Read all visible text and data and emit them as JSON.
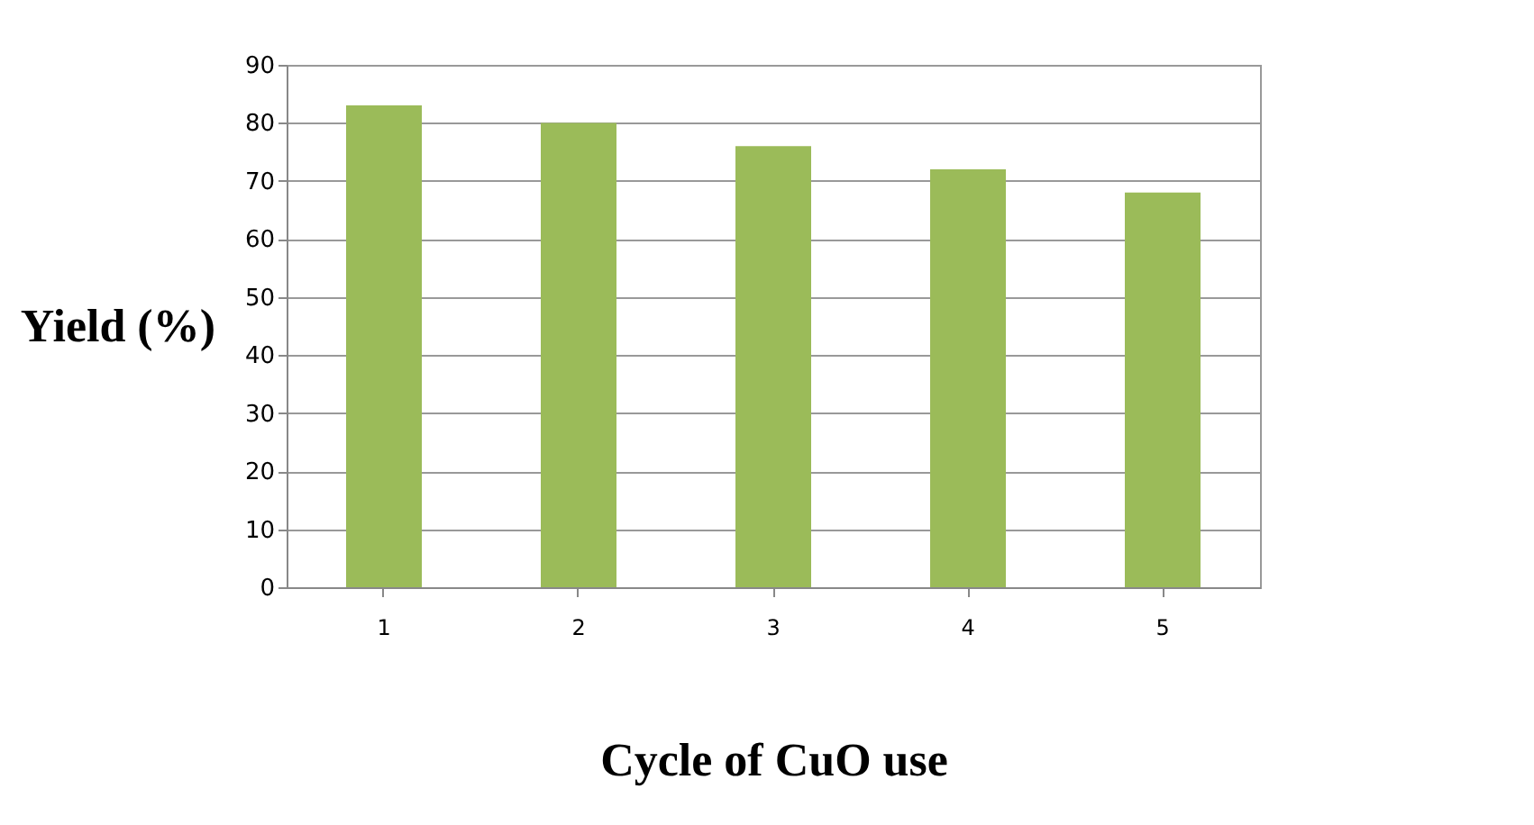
{
  "chart_data": {
    "type": "bar",
    "xlabel": "Cycle of CuO use",
    "ylabel": "Yield (%)",
    "categories": [
      "1",
      "2",
      "3",
      "4",
      "5"
    ],
    "values": [
      83,
      80,
      76,
      72,
      68
    ],
    "color": "#9bbb59",
    "ylim": [
      0,
      90
    ],
    "yticks": [
      0,
      10,
      20,
      30,
      40,
      50,
      60,
      70,
      80,
      90
    ],
    "grid": "y"
  }
}
